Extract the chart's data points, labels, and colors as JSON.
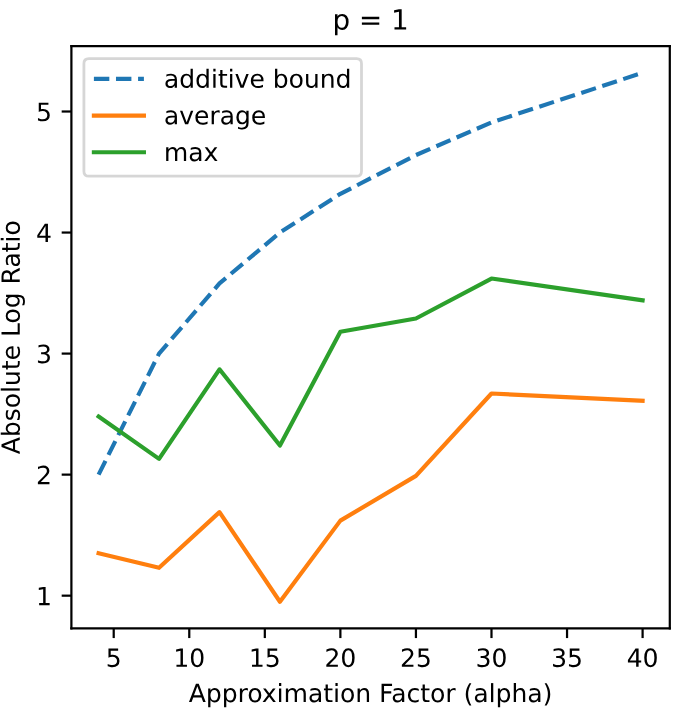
{
  "chart_data": {
    "type": "line",
    "title": "p = 1",
    "xlabel": "Approximation Factor (alpha)",
    "ylabel": "Absolute Log Ratio",
    "x": [
      4,
      8,
      12,
      16,
      20,
      25,
      30,
      40
    ],
    "series": [
      {
        "name": "additive bound",
        "color": "#1f77b4",
        "line_style": "dashed",
        "values": [
          2.0,
          3.0,
          3.58,
          4.0,
          4.32,
          4.64,
          4.91,
          5.32
        ]
      },
      {
        "name": "average",
        "color": "#ff7f0e",
        "values": [
          1.35,
          1.23,
          1.69,
          0.95,
          1.62,
          1.99,
          2.67,
          2.61
        ]
      },
      {
        "name": "max",
        "color": "#2ca02c",
        "values": [
          2.48,
          2.13,
          2.87,
          2.24,
          3.18,
          3.29,
          3.62,
          3.44
        ]
      }
    ],
    "xlim": [
      2.2,
      41.8
    ],
    "xticks": [
      5,
      10,
      15,
      20,
      25,
      30,
      35,
      40
    ],
    "ylim": [
      0.73,
      5.54
    ],
    "yticks": [
      1,
      2,
      3,
      4,
      5
    ],
    "legend": "top left",
    "grid": false
  }
}
